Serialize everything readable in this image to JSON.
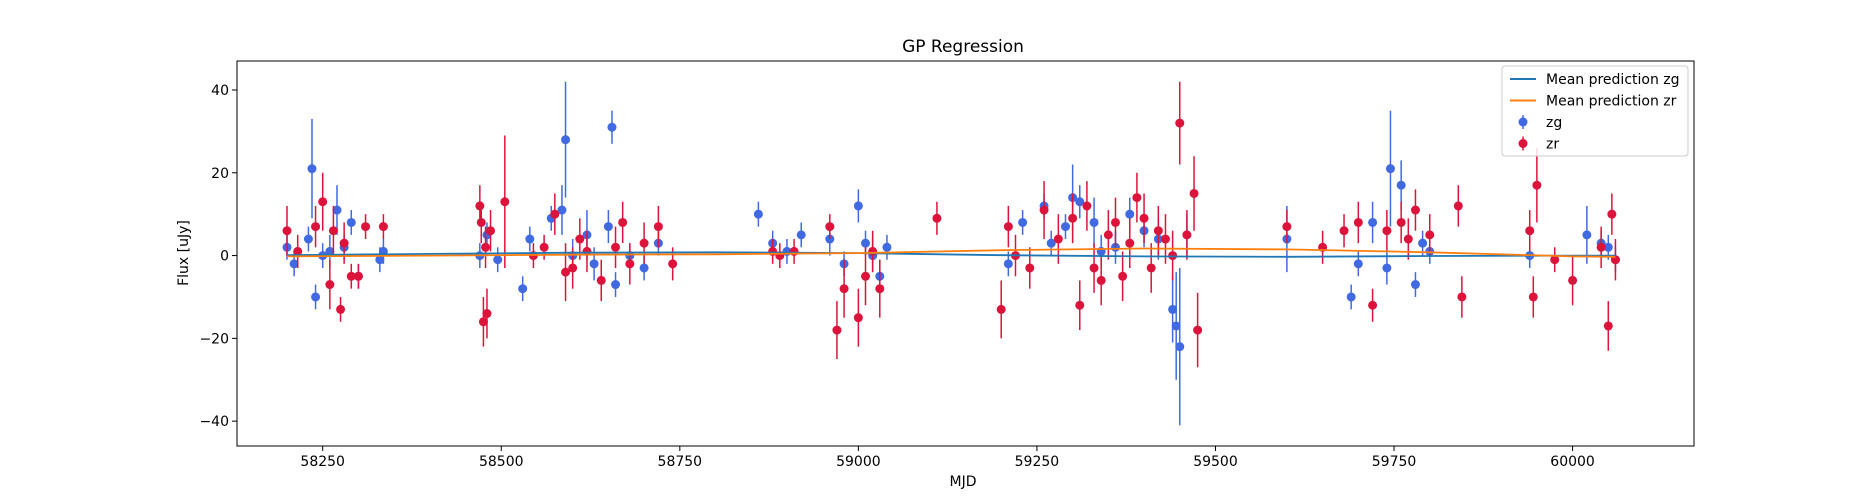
{
  "chart_data": {
    "type": "scatter",
    "title": "GP Regression",
    "xlabel": "MJD",
    "ylabel": "Flux [uJy]",
    "xlim": [
      58130,
      60170
    ],
    "ylim": [
      -46,
      47
    ],
    "xticks": [
      58250,
      58500,
      58750,
      59000,
      59250,
      59500,
      59750,
      60000
    ],
    "yticks": [
      -40,
      -20,
      0,
      20,
      40
    ],
    "grid": false,
    "legend_position": "top-right",
    "legend": [
      {
        "label": "Mean prediction zg",
        "kind": "line",
        "color": "#1f77b4"
      },
      {
        "label": "Mean prediction zr",
        "kind": "line",
        "color": "#ff7f0e"
      },
      {
        "label": "zg",
        "kind": "errorbar",
        "color": "#4169e1"
      },
      {
        "label": "zr",
        "kind": "errorbar",
        "color": "#dc143c"
      }
    ],
    "lines": [
      {
        "name": "Mean prediction zg",
        "color": "#1f77b4",
        "x": [
          58200,
          58400,
          58600,
          58800,
          59000,
          59200,
          59400,
          59600,
          59800,
          60000,
          60060
        ],
        "y": [
          0.1,
          0.4,
          0.7,
          0.8,
          0.6,
          0.1,
          -0.2,
          -0.3,
          -0.1,
          0.0,
          0.0
        ]
      },
      {
        "name": "Mean prediction zr",
        "color": "#ff7f0e",
        "x": [
          58200,
          58400,
          58600,
          58800,
          59000,
          59200,
          59400,
          59600,
          59800,
          60000,
          60060
        ],
        "y": [
          -0.2,
          0.0,
          0.2,
          0.3,
          0.6,
          1.3,
          1.7,
          1.5,
          0.8,
          -0.2,
          -0.3
        ]
      }
    ],
    "series": [
      {
        "name": "zg",
        "color": "#4169e1",
        "x": [
          58200,
          58210,
          58230,
          58235,
          58240,
          58250,
          58260,
          58270,
          58280,
          58290,
          58300,
          58330,
          58335,
          58470,
          58480,
          58495,
          58530,
          58540,
          58570,
          58585,
          58590,
          58600,
          58620,
          58630,
          58650,
          58655,
          58660,
          58680,
          58700,
          58720,
          58860,
          58880,
          58900,
          58920,
          58960,
          58980,
          59000,
          59010,
          59020,
          59030,
          59040,
          59210,
          59230,
          59260,
          59270,
          59290,
          59300,
          59310,
          59330,
          59340,
          59360,
          59380,
          59400,
          59420,
          59440,
          59445,
          59450,
          59460,
          59600,
          59690,
          59700,
          59720,
          59740,
          59745,
          59760,
          59780,
          59790,
          59800,
          59940,
          60020,
          60040,
          60050,
          60060
        ],
        "y": [
          2,
          -2,
          4,
          21,
          -10,
          0,
          1,
          11,
          2,
          8,
          -5,
          -1,
          1,
          0,
          5,
          -1,
          -8,
          4,
          9,
          11,
          28,
          0,
          5,
          -2,
          7,
          31,
          -7,
          0,
          -3,
          3,
          10,
          3,
          1,
          5,
          4,
          -2,
          12,
          3,
          0,
          -5,
          2,
          -2,
          8,
          12,
          3,
          7,
          14,
          13,
          8,
          1,
          2,
          10,
          6,
          4,
          -13,
          -17,
          -22,
          5,
          4,
          -10,
          -2,
          8,
          -3,
          21,
          17,
          -7,
          3,
          1,
          0,
          5,
          3,
          2,
          -1
        ],
        "err": [
          3,
          3,
          3,
          12,
          3,
          3,
          4,
          6,
          3,
          3,
          3,
          3,
          3,
          3,
          3,
          3,
          3,
          3,
          3,
          6,
          14,
          4,
          6,
          4,
          4,
          4,
          3,
          3,
          3,
          3,
          3,
          3,
          3,
          3,
          4,
          3,
          4,
          3,
          4,
          4,
          3,
          3,
          3,
          3,
          3,
          3,
          8,
          4,
          6,
          4,
          4,
          4,
          4,
          5,
          8,
          13,
          19,
          5,
          8,
          3,
          3,
          5,
          4,
          14,
          6,
          3,
          3,
          3,
          3,
          7,
          3,
          3,
          3
        ]
      },
      {
        "name": "zr",
        "color": "#dc143c",
        "x": [
          58200,
          58215,
          58240,
          58250,
          58260,
          58265,
          58275,
          58280,
          58290,
          58300,
          58310,
          58335,
          58470,
          58472,
          58475,
          58478,
          58480,
          58485,
          58505,
          58545,
          58560,
          58575,
          58590,
          58600,
          58610,
          58620,
          58640,
          58660,
          58670,
          58680,
          58700,
          58720,
          58740,
          58880,
          58890,
          58910,
          58960,
          58970,
          58980,
          59000,
          59010,
          59020,
          59030,
          59110,
          59200,
          59210,
          59220,
          59240,
          59260,
          59280,
          59300,
          59310,
          59320,
          59330,
          59340,
          59350,
          59360,
          59370,
          59380,
          59390,
          59400,
          59410,
          59420,
          59430,
          59440,
          59450,
          59460,
          59470,
          59475,
          59600,
          59650,
          59680,
          59700,
          59720,
          59740,
          59760,
          59770,
          59780,
          59800,
          59840,
          59845,
          59940,
          59945,
          59950,
          59975,
          60000,
          60040,
          60050,
          60055,
          60060
        ],
        "y": [
          6,
          1,
          7,
          13,
          -7,
          6,
          -13,
          3,
          -5,
          -5,
          7,
          7,
          12,
          8,
          -16,
          2,
          -14,
          6,
          13,
          0,
          2,
          10,
          -4,
          -3,
          4,
          1,
          -6,
          2,
          8,
          -2,
          3,
          7,
          -2,
          1,
          0,
          1,
          7,
          -18,
          -8,
          -15,
          -5,
          1,
          -8,
          9,
          -13,
          7,
          0,
          -3,
          11,
          4,
          9,
          -12,
          12,
          -3,
          -6,
          5,
          8,
          -5,
          3,
          14,
          9,
          -3,
          6,
          4,
          0,
          32,
          5,
          15,
          -18,
          7,
          2,
          6,
          8,
          -12,
          6,
          8,
          4,
          11,
          5,
          12,
          -10,
          6,
          -10,
          17,
          -1,
          -6,
          2,
          -17,
          10,
          -1
        ],
        "err": [
          6,
          4,
          5,
          7,
          6,
          6,
          3,
          5,
          3,
          3,
          3,
          3,
          5,
          5,
          6,
          5,
          6,
          5,
          16,
          3,
          3,
          5,
          7,
          5,
          5,
          5,
          5,
          5,
          5,
          5,
          5,
          5,
          4,
          3,
          3,
          3,
          3,
          7,
          7,
          7,
          7,
          5,
          7,
          4,
          7,
          5,
          5,
          5,
          7,
          6,
          6,
          6,
          6,
          6,
          6,
          6,
          6,
          6,
          6,
          6,
          6,
          6,
          6,
          6,
          6,
          10,
          6,
          9,
          9,
          4,
          4,
          4,
          5,
          4,
          5,
          5,
          5,
          5,
          5,
          5,
          5,
          5,
          5,
          9,
          3,
          6,
          5,
          6,
          5,
          5
        ]
      }
    ]
  }
}
